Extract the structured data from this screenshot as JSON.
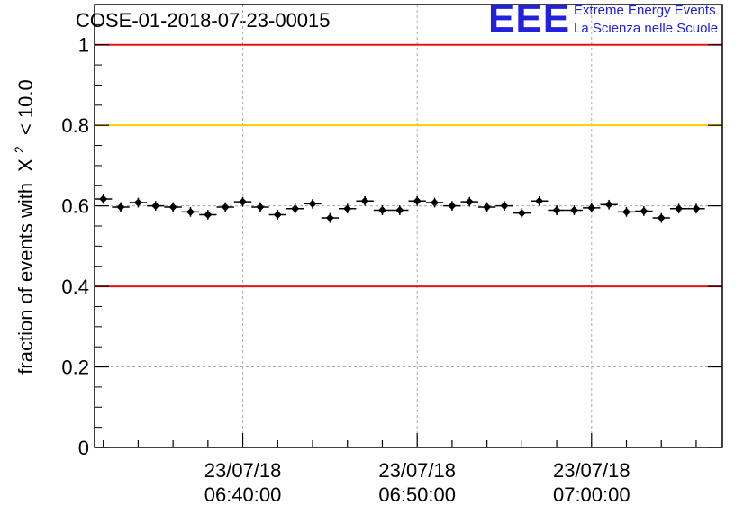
{
  "chart_data": {
    "type": "scatter",
    "title": "COSE-01-2018-07-23-00015",
    "ylabel_prefix": "fraction of events with",
    "ylabel_symbol": "X",
    "ylabel_superscript": "2",
    "ylabel_suffix": "< 10.0",
    "xlabel": "",
    "x_start": "23/07/18 06:32:00",
    "x_end": "23/07/18 07:08:00",
    "xlim_minutes": [
      0,
      36
    ],
    "ylim": [
      0,
      1.1
    ],
    "yticks": [
      0,
      0.2,
      0.4,
      0.6,
      0.8,
      1
    ],
    "ytick_labels": [
      "0",
      "0.2",
      "0.4",
      "0.6",
      "0.8",
      "1"
    ],
    "xticks": [
      {
        "minute": 8.5,
        "date": "23/07/18",
        "time": "06:40:00"
      },
      {
        "minute": 18.5,
        "date": "23/07/18",
        "time": "06:50:00"
      },
      {
        "minute": 28.5,
        "date": "23/07/18",
        "time": "07:00:00"
      }
    ],
    "grid": true,
    "reference_lines": [
      {
        "y": 1.0,
        "color": "#e81313"
      },
      {
        "y": 0.8,
        "color": "#ffcc00"
      },
      {
        "y": 0.4,
        "color": "#e81313"
      }
    ],
    "bin_width_minutes": 1,
    "series": [
      {
        "color": "#000000",
        "x_minutes": [
          0.5,
          1.5,
          2.5,
          3.5,
          4.5,
          5.5,
          6.5,
          7.5,
          8.5,
          9.5,
          10.5,
          11.5,
          12.5,
          13.5,
          14.5,
          15.5,
          16.5,
          17.5,
          18.5,
          19.5,
          20.5,
          21.5,
          22.5,
          23.5,
          24.5,
          25.5,
          26.5,
          27.5,
          28.5,
          29.5,
          30.5,
          31.5,
          32.5,
          33.5,
          34.5
        ],
        "values": [
          0.617,
          0.597,
          0.608,
          0.6,
          0.597,
          0.585,
          0.578,
          0.597,
          0.61,
          0.597,
          0.578,
          0.593,
          0.605,
          0.57,
          0.593,
          0.612,
          0.589,
          0.589,
          0.612,
          0.608,
          0.6,
          0.61,
          0.597,
          0.6,
          0.582,
          0.612,
          0.589,
          0.589,
          0.595,
          0.603,
          0.585,
          0.587,
          0.57,
          0.593,
          0.593
        ],
        "errors": [
          0.012,
          0.012,
          0.012,
          0.012,
          0.012,
          0.012,
          0.012,
          0.012,
          0.012,
          0.012,
          0.012,
          0.012,
          0.012,
          0.012,
          0.012,
          0.012,
          0.012,
          0.012,
          0.012,
          0.012,
          0.012,
          0.012,
          0.012,
          0.012,
          0.012,
          0.012,
          0.012,
          0.012,
          0.012,
          0.012,
          0.012,
          0.012,
          0.012,
          0.012,
          0.012
        ]
      }
    ]
  },
  "logo": {
    "mark": "EEE",
    "line1": "Extreme Energy Events",
    "line2": "La Scienza nelle Scuole",
    "color": "#1a1aee"
  }
}
